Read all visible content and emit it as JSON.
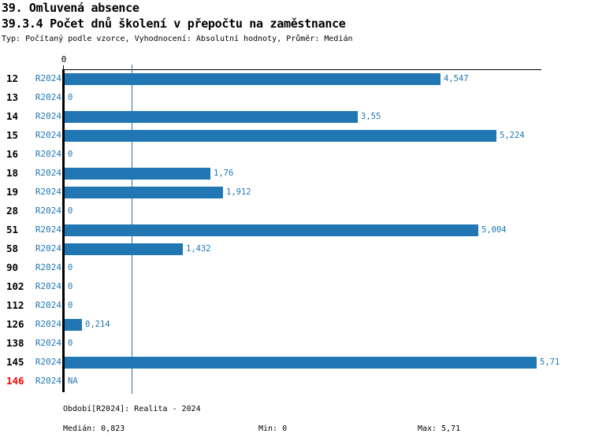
{
  "header": {
    "title1": "39. Omluvená absence",
    "title2": "39.3.4 Počet dnů školení v přepočtu na zaměstnance",
    "subtitle": "Typ: Počítaný podle vzorce, Vyhodnocení: Absolutní hodnoty, Průměr: Medián"
  },
  "chart_data": {
    "type": "bar",
    "orientation": "horizontal",
    "title": "39.3.4 Počet dnů školení v přepočtu na zaměstnance",
    "categories": [
      "12",
      "13",
      "14",
      "15",
      "16",
      "18",
      "19",
      "28",
      "51",
      "58",
      "90",
      "102",
      "112",
      "126",
      "138",
      "145",
      "146"
    ],
    "series_label": "R2024",
    "values": [
      4.547,
      0,
      3.55,
      5.224,
      0,
      1.76,
      1.912,
      0,
      5.004,
      1.432,
      0,
      0,
      0,
      0.214,
      0,
      5.71,
      null
    ],
    "value_labels": [
      "4,547",
      "0",
      "3,55",
      "5,224",
      "0",
      "1,76",
      "1,912",
      "0",
      "5,004",
      "1,432",
      "0",
      "0",
      "0",
      "0,214",
      "0",
      "5,71",
      "NA"
    ],
    "highlight_categories": [
      "146"
    ],
    "xlim": [
      0,
      5.71
    ],
    "x_tick_labels": [
      "0"
    ],
    "median_value": 0.823,
    "legend_position": "none",
    "grid": false,
    "bar_color": "#2077b4",
    "label_color": "#2077b4",
    "highlight_color": "#ff0000",
    "axis_color": "#000000"
  },
  "footer": {
    "period": "Období[R2024]: Realita - 2024",
    "median": "Medián: 0,823",
    "min": "Min: 0",
    "max": "Max: 5,71"
  }
}
